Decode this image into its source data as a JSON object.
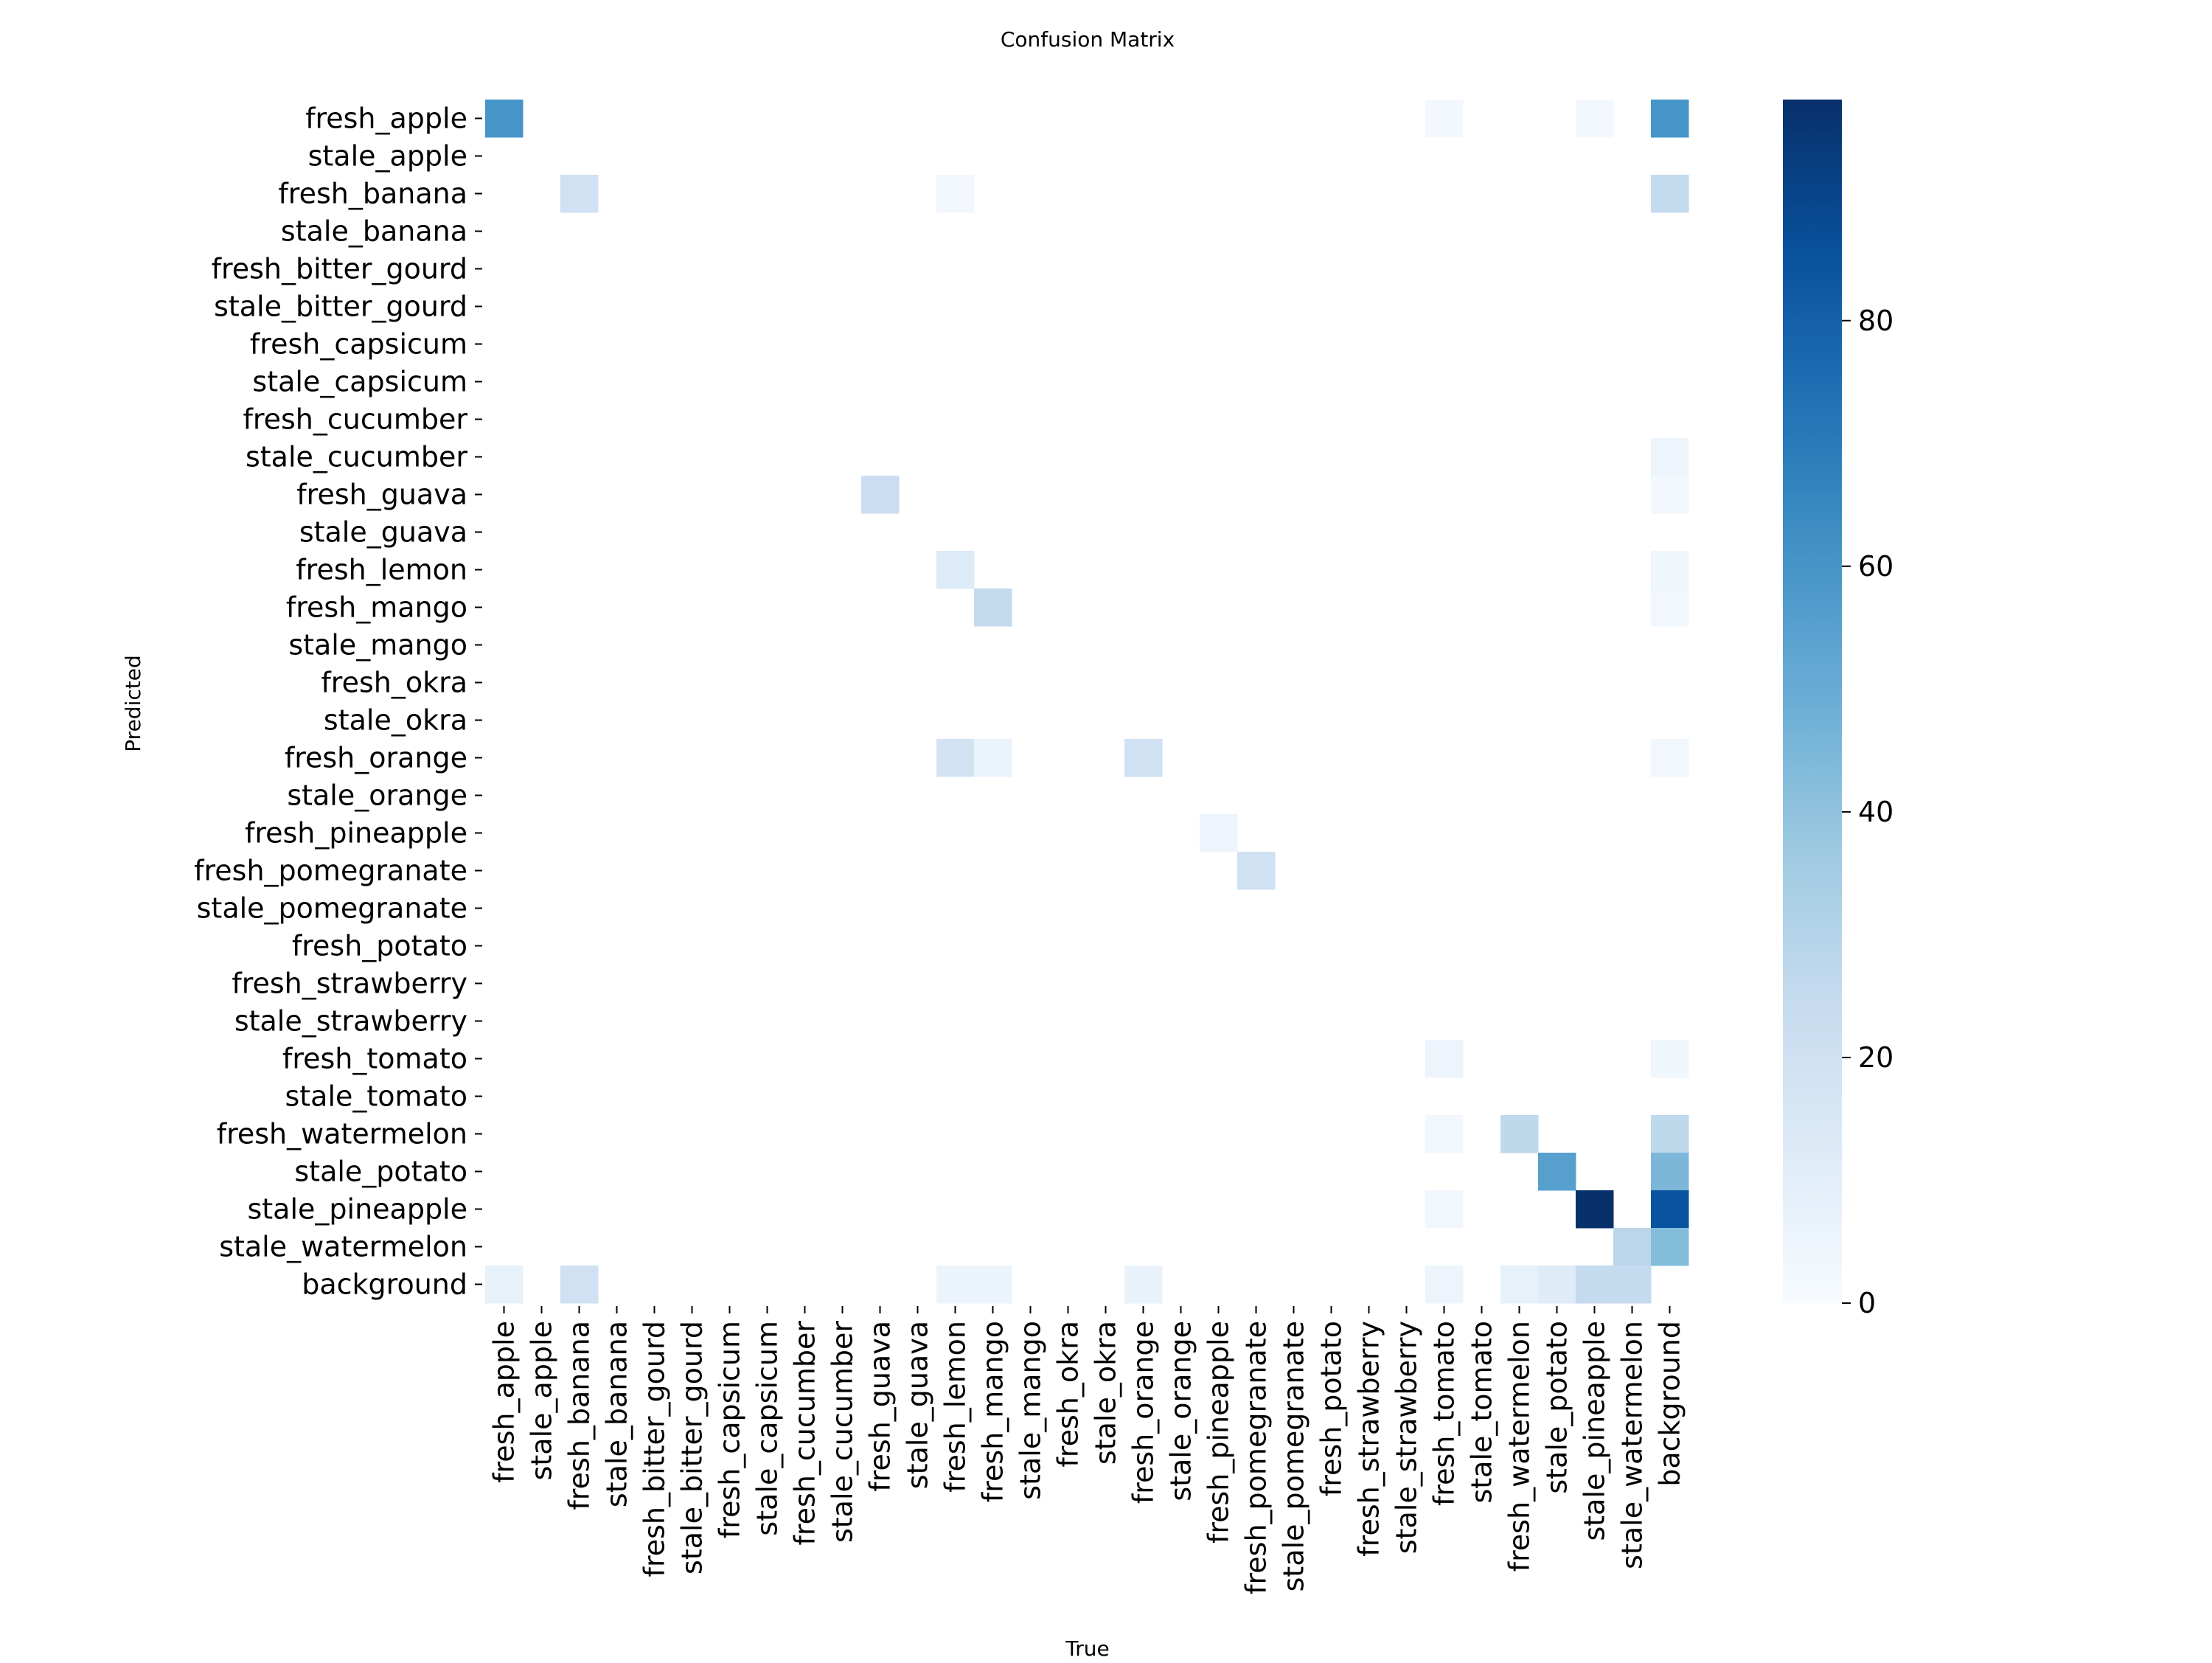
{
  "chart_data": {
    "type": "heatmap",
    "title": "Confusion Matrix",
    "xlabel": "True",
    "ylabel": "Predicted",
    "colormap": "Blues",
    "color_low": "#f7fbff",
    "color_high": "#08306b",
    "vmin": 0,
    "vmax": 98,
    "colorbar_ticks": [
      0,
      20,
      40,
      60,
      80
    ],
    "colorbar_tick_labels": [
      "0",
      "20",
      "40",
      "60",
      "80"
    ],
    "x_categories": [
      "fresh_apple",
      "stale_apple",
      "fresh_banana",
      "stale_banana",
      "fresh_bitter_gourd",
      "stale_bitter_gourd",
      "fresh_capsicum",
      "stale_capsicum",
      "fresh_cucumber",
      "stale_cucumber",
      "fresh_guava",
      "stale_guava",
      "fresh_lemon",
      "fresh_mango",
      "stale_mango",
      "fresh_okra",
      "stale_okra",
      "fresh_orange",
      "stale_orange",
      "fresh_pineapple",
      "fresh_pomegranate",
      "stale_pomegranate",
      "fresh_potato",
      "fresh_strawberry",
      "stale_strawberry",
      "fresh_tomato",
      "stale_tomato",
      "fresh_watermelon",
      "stale_potato",
      "stale_pineapple",
      "stale_watermelon",
      "background"
    ],
    "y_categories": [
      "fresh_apple",
      "stale_apple",
      "fresh_banana",
      "stale_banana",
      "fresh_bitter_gourd",
      "stale_bitter_gourd",
      "fresh_capsicum",
      "stale_capsicum",
      "fresh_cucumber",
      "stale_cucumber",
      "fresh_guava",
      "stale_guava",
      "fresh_lemon",
      "fresh_mango",
      "stale_mango",
      "fresh_okra",
      "stale_okra",
      "fresh_orange",
      "stale_orange",
      "fresh_pineapple",
      "fresh_pomegranate",
      "stale_pomegranate",
      "fresh_potato",
      "fresh_strawberry",
      "stale_strawberry",
      "fresh_tomato",
      "stale_tomato",
      "fresh_watermelon",
      "stale_potato",
      "stale_pineapple",
      "stale_watermelon",
      "background"
    ],
    "cells": [
      {
        "predicted": "fresh_apple",
        "true": "fresh_apple",
        "value": 60
      },
      {
        "predicted": "fresh_apple",
        "true": "fresh_tomato",
        "value": 2
      },
      {
        "predicted": "fresh_apple",
        "true": "stale_pineapple",
        "value": 2
      },
      {
        "predicted": "fresh_apple",
        "true": "background",
        "value": 60
      },
      {
        "predicted": "fresh_banana",
        "true": "fresh_banana",
        "value": 20
      },
      {
        "predicted": "fresh_banana",
        "true": "fresh_lemon",
        "value": 3
      },
      {
        "predicted": "fresh_banana",
        "true": "background",
        "value": 25
      },
      {
        "predicted": "stale_cucumber",
        "true": "background",
        "value": 5
      },
      {
        "predicted": "fresh_guava",
        "true": "fresh_guava",
        "value": 22
      },
      {
        "predicted": "fresh_guava",
        "true": "background",
        "value": 2
      },
      {
        "predicted": "fresh_lemon",
        "true": "fresh_lemon",
        "value": 13
      },
      {
        "predicted": "fresh_lemon",
        "true": "background",
        "value": 4
      },
      {
        "predicted": "fresh_mango",
        "true": "fresh_mango",
        "value": 25
      },
      {
        "predicted": "fresh_mango",
        "true": "background",
        "value": 3
      },
      {
        "predicted": "fresh_orange",
        "true": "fresh_lemon",
        "value": 18
      },
      {
        "predicted": "fresh_orange",
        "true": "fresh_mango",
        "value": 6
      },
      {
        "predicted": "fresh_orange",
        "true": "fresh_orange",
        "value": 20
      },
      {
        "predicted": "fresh_orange",
        "true": "background",
        "value": 3
      },
      {
        "predicted": "fresh_pineapple",
        "true": "fresh_pineapple",
        "value": 5
      },
      {
        "predicted": "fresh_pomegranate",
        "true": "fresh_pomegranate",
        "value": 20
      },
      {
        "predicted": "fresh_tomato",
        "true": "fresh_tomato",
        "value": 5
      },
      {
        "predicted": "fresh_tomato",
        "true": "background",
        "value": 4
      },
      {
        "predicted": "fresh_watermelon",
        "true": "fresh_tomato",
        "value": 3
      },
      {
        "predicted": "fresh_watermelon",
        "true": "fresh_watermelon",
        "value": 27
      },
      {
        "predicted": "fresh_watermelon",
        "true": "background",
        "value": 27
      },
      {
        "predicted": "stale_potato",
        "true": "stale_potato",
        "value": 55
      },
      {
        "predicted": "stale_potato",
        "true": "background",
        "value": 45
      },
      {
        "predicted": "stale_pineapple",
        "true": "fresh_tomato",
        "value": 3
      },
      {
        "predicted": "stale_pineapple",
        "true": "stale_pineapple",
        "value": 98
      },
      {
        "predicted": "stale_pineapple",
        "true": "background",
        "value": 85
      },
      {
        "predicted": "stale_watermelon",
        "true": "stale_watermelon",
        "value": 28
      },
      {
        "predicted": "stale_watermelon",
        "true": "background",
        "value": 43
      },
      {
        "predicted": "background",
        "true": "fresh_apple",
        "value": 8
      },
      {
        "predicted": "background",
        "true": "fresh_banana",
        "value": 20
      },
      {
        "predicted": "background",
        "true": "fresh_lemon",
        "value": 6
      },
      {
        "predicted": "background",
        "true": "fresh_mango",
        "value": 6
      },
      {
        "predicted": "background",
        "true": "fresh_orange",
        "value": 7
      },
      {
        "predicted": "background",
        "true": "fresh_tomato",
        "value": 5
      },
      {
        "predicted": "background",
        "true": "fresh_watermelon",
        "value": 8
      },
      {
        "predicted": "background",
        "true": "stale_potato",
        "value": 12
      },
      {
        "predicted": "background",
        "true": "stale_pineapple",
        "value": 25
      },
      {
        "predicted": "background",
        "true": "stale_watermelon",
        "value": 25
      }
    ]
  }
}
